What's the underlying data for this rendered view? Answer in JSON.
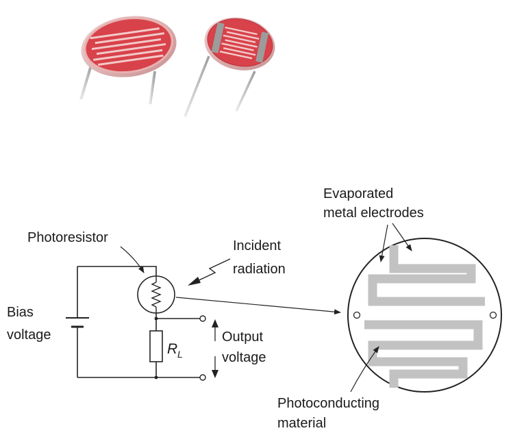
{
  "labels": {
    "photoresistor": "Photoresistor",
    "incident_1": "Incident",
    "incident_2": "radiation",
    "bias_1": "Bias",
    "bias_2": "voltage",
    "output_1": "Output",
    "output_2": "voltage",
    "rl_main": "R",
    "rl_sub": "L",
    "evaporated_1": "Evaporated",
    "evaporated_2": "metal electrodes",
    "photoconducting_1": "Photoconducting",
    "photoconducting_2": "material"
  },
  "colors": {
    "cell_face": "#d8424a",
    "cell_rim": "#e7c7c7",
    "electrode_track": "#bfbfbf",
    "lead_wire": "#c9c9c9"
  },
  "icons": {
    "photo_cells": "ldr-photo",
    "photoresistor_symbol": "circled-resistor",
    "battery_symbol": "battery",
    "load_resistor_symbol": "resistor-box",
    "light_symbol": "zigzag-arrow"
  }
}
